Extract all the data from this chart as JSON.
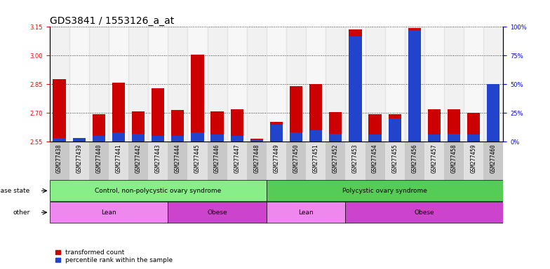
{
  "title": "GDS3841 / 1553126_a_at",
  "samples": [
    "GSM277438",
    "GSM277439",
    "GSM277440",
    "GSM277441",
    "GSM277442",
    "GSM277443",
    "GSM277444",
    "GSM277445",
    "GSM277446",
    "GSM277447",
    "GSM277448",
    "GSM277449",
    "GSM277450",
    "GSM277451",
    "GSM277452",
    "GSM277453",
    "GSM277454",
    "GSM277455",
    "GSM277456",
    "GSM277457",
    "GSM277458",
    "GSM277459",
    "GSM277460"
  ],
  "transformed_count": [
    2.875,
    2.565,
    2.695,
    2.86,
    2.71,
    2.83,
    2.715,
    3.005,
    2.71,
    2.72,
    2.565,
    2.655,
    2.84,
    2.85,
    2.705,
    3.135,
    2.695,
    2.695,
    3.145,
    2.72,
    2.72,
    2.7,
    2.845
  ],
  "percentile_rank": [
    3,
    3,
    5,
    8,
    7,
    5,
    5,
    8,
    6,
    5,
    2,
    15,
    8,
    10,
    7,
    92,
    6,
    20,
    97,
    6,
    7,
    6,
    50
  ],
  "ylim_left": [
    2.55,
    3.15
  ],
  "ylim_right": [
    0,
    100
  ],
  "yticks_left": [
    2.55,
    2.7,
    2.85,
    3.0,
    3.15
  ],
  "yticks_right": [
    0,
    25,
    50,
    75,
    100
  ],
  "ytick_labels_right": [
    "0%",
    "25%",
    "50%",
    "75%",
    "100%"
  ],
  "bar_color_red": "#cc0000",
  "bar_color_blue": "#2244cc",
  "bar_width": 0.65,
  "disease_state_groups": [
    {
      "label": "Control, non-polycystic ovary syndrome",
      "start": 0,
      "end": 11,
      "color": "#88ee88"
    },
    {
      "label": "Polycystic ovary syndrome",
      "start": 11,
      "end": 23,
      "color": "#55cc55"
    }
  ],
  "other_groups": [
    {
      "label": "Lean",
      "start": 0,
      "end": 6,
      "color": "#ee88ee"
    },
    {
      "label": "Obese",
      "start": 6,
      "end": 11,
      "color": "#cc44cc"
    },
    {
      "label": "Lean",
      "start": 11,
      "end": 15,
      "color": "#ee88ee"
    },
    {
      "label": "Obese",
      "start": 15,
      "end": 23,
      "color": "#cc44cc"
    }
  ],
  "legend_items": [
    {
      "label": "transformed count",
      "color": "#cc0000"
    },
    {
      "label": "percentile rank within the sample",
      "color": "#2244cc"
    }
  ],
  "background_color": "#ffffff",
  "tick_fontsize": 6,
  "title_fontsize": 10,
  "xtick_fontsize": 5.5
}
